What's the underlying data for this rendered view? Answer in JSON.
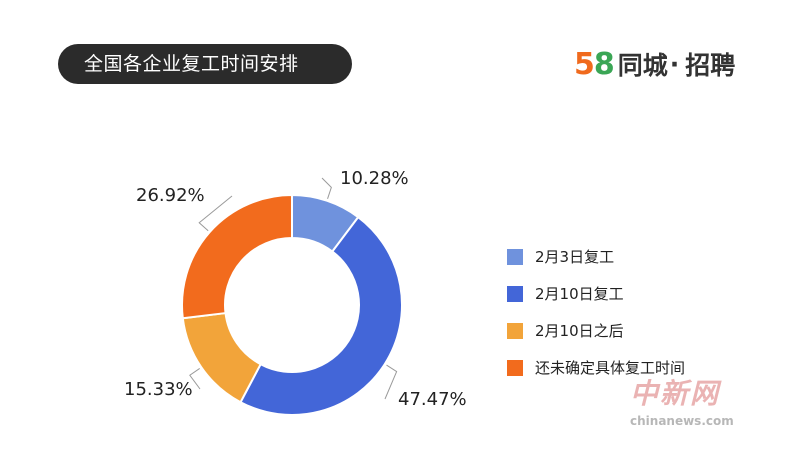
{
  "header": {
    "title": "全国各企业复工时间安排",
    "brand_5": "5",
    "brand_8": "8",
    "brand_name": "同城",
    "brand_dot": "·",
    "brand_suffix": "招聘"
  },
  "chart_data": {
    "type": "pie",
    "style": "donut",
    "start_angle_deg": 0,
    "direction": "clockwise",
    "categories": [
      "2月3日复工",
      "2月10日复工",
      "2月10日之后",
      "还未确定具体复工时间"
    ],
    "values": [
      10.28,
      47.47,
      15.33,
      26.92
    ],
    "labels": [
      "10.28%",
      "47.47%",
      "15.33%",
      "26.92%"
    ],
    "colors": [
      "#6f92dd",
      "#4366d8",
      "#f2a43a",
      "#f26b1d"
    ],
    "legend_position": "right"
  },
  "watermark": {
    "line1": "中新网",
    "line2": "chinanews.com"
  }
}
